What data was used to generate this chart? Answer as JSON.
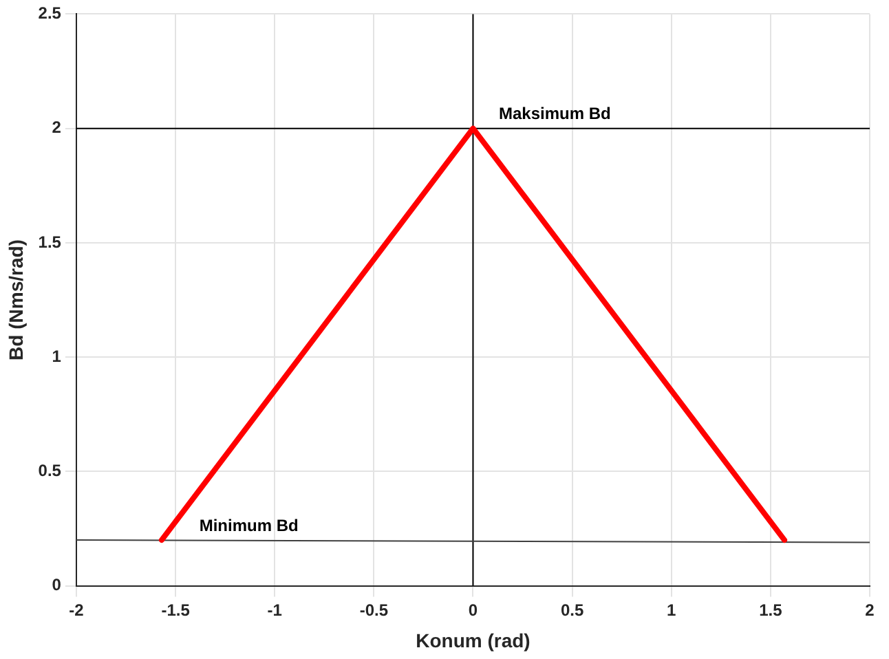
{
  "chart_data": {
    "type": "line",
    "xlabel": "Konum (rad)",
    "ylabel": "Bd (Nms/rad)",
    "xlim": [
      -2,
      2
    ],
    "xticks": [
      -2,
      -1.5,
      -1,
      -0.5,
      0,
      0.5,
      1,
      1.5,
      2
    ],
    "ylim": [
      0,
      2.5
    ],
    "yticks": [
      0,
      0.5,
      1,
      1.5,
      2,
      2.5
    ],
    "series": [
      {
        "color": "#ff0000",
        "x": [
          -1.57,
          0,
          1.57
        ],
        "values": [
          0.2,
          2,
          0.2
        ]
      },
      {
        "color": "#000000",
        "x": [
          -2,
          2
        ],
        "values": [
          2,
          2
        ]
      },
      {
        "color": "#404040",
        "x": [
          -2,
          2
        ],
        "values": [
          0.2,
          0.19
        ]
      },
      {
        "color": "#000000",
        "x": [
          0,
          0
        ],
        "values": [
          0,
          2.5
        ]
      }
    ],
    "annotations": [
      {
        "text": "Maksimum Bd",
        "x": 0.13,
        "y": 2
      },
      {
        "text": "Minimum Bd",
        "x": -1.38,
        "y": 0.2
      }
    ],
    "grid": true,
    "legend": false,
    "marker": "none",
    "line_style": "solid"
  }
}
